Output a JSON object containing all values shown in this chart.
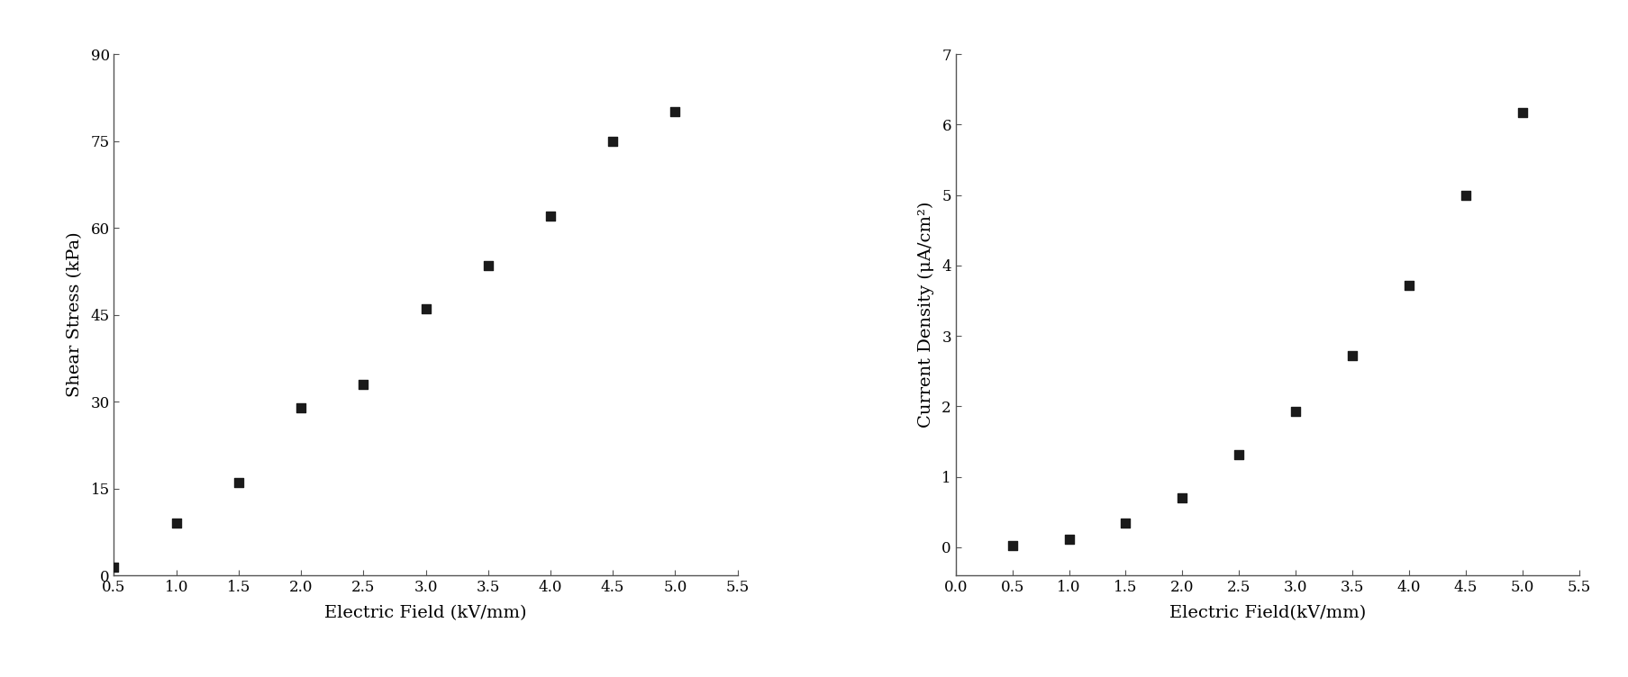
{
  "plot1": {
    "x": [
      0.5,
      1.0,
      1.5,
      2.0,
      2.5,
      3.0,
      3.5,
      4.0,
      4.5,
      5.0
    ],
    "y": [
      1.5,
      9.0,
      16.0,
      29.0,
      33.0,
      46.0,
      53.5,
      62.0,
      75.0,
      80.0
    ],
    "xlabel": "Electric Field (kV/mm)",
    "ylabel": "Shear Stress (kPa)",
    "xlim": [
      0.5,
      5.5
    ],
    "ylim": [
      0,
      90
    ],
    "xticks": [
      0.5,
      1.0,
      1.5,
      2.0,
      2.5,
      3.0,
      3.5,
      4.0,
      4.5,
      5.0,
      5.5
    ],
    "xtick_labels": [
      "0.5",
      "1.0",
      "1.5",
      "2.0",
      "2.5",
      "3.0",
      "3.5",
      "4.0",
      "4.5",
      "5.0",
      "5.5"
    ],
    "yticks": [
      0,
      15,
      30,
      45,
      60,
      75,
      90
    ],
    "ytick_labels": [
      "0",
      "15",
      "30",
      "45",
      "60",
      "75",
      "90"
    ]
  },
  "plot2": {
    "x": [
      0.5,
      1.0,
      1.5,
      2.0,
      2.5,
      3.0,
      3.5,
      4.0,
      4.5,
      5.0
    ],
    "y": [
      0.02,
      0.12,
      0.35,
      0.7,
      1.32,
      1.93,
      2.72,
      3.72,
      5.0,
      6.17
    ],
    "xlabel": "Electric Field(kV/mm)",
    "ylabel": "Current Density (μA/cm²)",
    "xlim": [
      0.0,
      5.5
    ],
    "ylim": [
      -0.4,
      7
    ],
    "xticks": [
      0.0,
      0.5,
      1.0,
      1.5,
      2.0,
      2.5,
      3.0,
      3.5,
      4.0,
      4.5,
      5.0,
      5.5
    ],
    "xtick_labels": [
      "0.0",
      "0.5",
      "1.0",
      "1.5",
      "2.0",
      "2.5",
      "3.0",
      "3.5",
      "4.0",
      "4.5",
      "5.0",
      "5.5"
    ],
    "yticks": [
      0,
      1,
      2,
      3,
      4,
      5,
      6,
      7
    ],
    "ytick_labels": [
      "0",
      "1",
      "2",
      "3",
      "4",
      "5",
      "6",
      "7"
    ]
  },
  "marker": "s",
  "marker_size": 55,
  "marker_color": "#1a1a1a",
  "bg_color": "#ffffff",
  "font_family": "DejaVu Serif",
  "tick_fontsize": 12,
  "label_fontsize": 14,
  "spine_color": "#555555"
}
